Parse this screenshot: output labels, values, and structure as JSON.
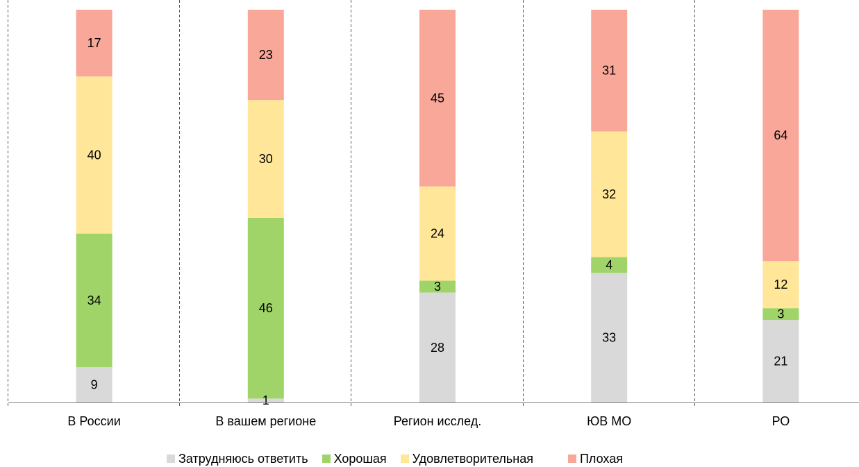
{
  "chart_data": {
    "type": "bar",
    "stacked": true,
    "normalized_to_100": true,
    "categories": [
      "В России",
      "В вашем регионе",
      "Регион исслед.",
      "ЮВ МО",
      "РО"
    ],
    "series": [
      {
        "name": "Затрудняюсь ответить",
        "color": "#d9d9d9",
        "values": [
          9,
          1,
          28,
          33,
          21
        ]
      },
      {
        "name": "Хорошая",
        "color": "#a0d468",
        "values": [
          34,
          46,
          3,
          4,
          3
        ]
      },
      {
        "name": "Удовлетворительная",
        "color": "#ffe699",
        "values": [
          40,
          30,
          24,
          32,
          12
        ]
      },
      {
        "name": "Плохая",
        "color": "#f8a799",
        "values": [
          17,
          23,
          45,
          31,
          64
        ]
      }
    ],
    "ylim": [
      0,
      100
    ],
    "grid": false,
    "category_separators": "dashed vertical lines",
    "legend_position": "bottom"
  }
}
